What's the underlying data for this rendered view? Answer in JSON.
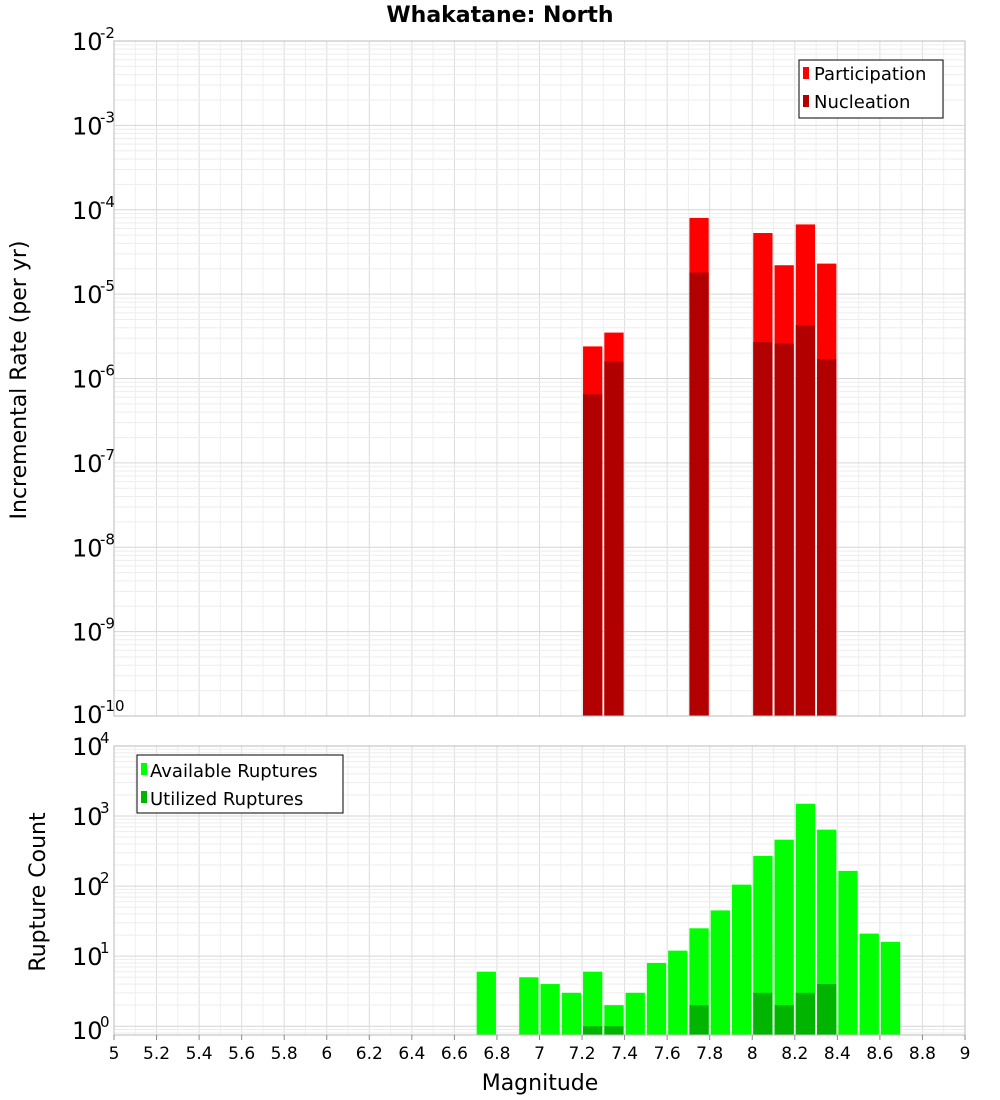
{
  "chart_data": [
    {
      "type": "bar",
      "title": "Whakatane: North",
      "xlabel": "",
      "ylabel": "Incremental Rate (per yr)",
      "yscale": "log",
      "ylim": [
        1e-10,
        0.01
      ],
      "xlim": [
        5,
        9
      ],
      "bin_width": 0.1,
      "legend_position": "top-right",
      "y_ticks": [
        {
          "base": "10",
          "exp": "-2"
        },
        {
          "base": "10",
          "exp": "-3"
        },
        {
          "base": "10",
          "exp": "-4"
        },
        {
          "base": "10",
          "exp": "-5"
        },
        {
          "base": "10",
          "exp": "-6"
        },
        {
          "base": "10",
          "exp": "-7"
        },
        {
          "base": "10",
          "exp": "-8"
        },
        {
          "base": "10",
          "exp": "-9"
        },
        {
          "base": "10",
          "exp": "-10"
        }
      ],
      "series": [
        {
          "name": "Participation",
          "color": "#ff0000",
          "x": [
            7.25,
            7.35,
            7.75,
            8.05,
            8.15,
            8.25,
            8.35
          ],
          "values": [
            2.4e-06,
            3.5e-06,
            8e-05,
            5.3e-05,
            2.2e-05,
            6.7e-05,
            2.3e-05
          ]
        },
        {
          "name": "Nucleation",
          "color": "#b20000",
          "x": [
            7.25,
            7.35,
            7.75,
            8.05,
            8.15,
            8.25,
            8.35
          ],
          "values": [
            6.5e-07,
            1.6e-06,
            1.8e-05,
            2.7e-06,
            2.6e-06,
            4.3e-06,
            1.7e-06
          ]
        }
      ]
    },
    {
      "type": "bar",
      "title": "",
      "xlabel": "Magnitude",
      "ylabel": "Rupture Count",
      "yscale": "log",
      "ylim": [
        0.75,
        10000
      ],
      "xlim": [
        5,
        9
      ],
      "bin_width": 0.1,
      "legend_position": "top-left",
      "y_ticks": [
        {
          "base": "10",
          "exp": "4",
          "value": 10000
        },
        {
          "base": "10",
          "exp": "3",
          "value": 1000
        },
        {
          "base": "10",
          "exp": "2",
          "value": 100
        },
        {
          "base": "10",
          "exp": "1",
          "value": 10
        },
        {
          "base": "10",
          "exp": "0",
          "value": 1
        }
      ],
      "x_ticks": [
        "5",
        "5.2",
        "5.4",
        "5.6",
        "5.8",
        "6",
        "6.2",
        "6.4",
        "6.6",
        "6.8",
        "7",
        "7.2",
        "7.4",
        "7.6",
        "7.8",
        "8",
        "8.2",
        "8.4",
        "8.6",
        "8.8",
        "9"
      ],
      "series": [
        {
          "name": "Available Ruptures",
          "color": "#00ff00",
          "x": [
            6.75,
            6.95,
            7.05,
            7.15,
            7.25,
            7.35,
            7.45,
            7.55,
            7.65,
            7.75,
            7.85,
            7.95,
            8.05,
            8.15,
            8.25,
            8.35,
            8.45,
            8.55,
            8.65
          ],
          "values": [
            6,
            5,
            4,
            3,
            6,
            2,
            3,
            8,
            12,
            25,
            45,
            105,
            270,
            460,
            1500,
            640,
            165,
            21,
            16
          ]
        },
        {
          "name": "Utilized Ruptures",
          "color": "#00b400",
          "x": [
            7.25,
            7.35,
            7.75,
            8.05,
            8.15,
            8.25,
            8.35
          ],
          "values": [
            1,
            1,
            2,
            3,
            2,
            3,
            4
          ]
        }
      ]
    }
  ]
}
